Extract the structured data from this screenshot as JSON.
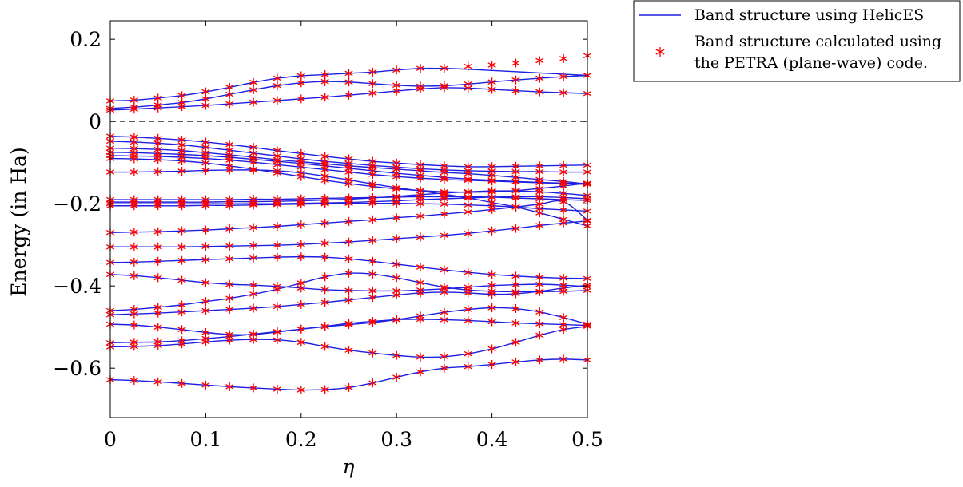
{
  "chart_data": {
    "type": "line",
    "xlabel": "η",
    "ylabel": "Energy (in Ha)",
    "xlim": [
      0,
      0.5
    ],
    "ylim": [
      -0.72,
      0.245
    ],
    "x_ticks": [
      "0",
      "0.1",
      "0.2",
      "0.3",
      "0.4",
      "0.5"
    ],
    "y_ticks": [
      "−0.6",
      "−0.4",
      "−0.2",
      "0",
      "0.2"
    ],
    "x_tick_values": [
      0,
      0.1,
      0.2,
      0.3,
      0.4,
      0.5
    ],
    "y_tick_values": [
      -0.6,
      -0.4,
      -0.2,
      0,
      0.2
    ],
    "zero_line": {
      "y": 0,
      "style": "dashed"
    },
    "grid": false,
    "legend_position": "outside-top-right",
    "series": [
      {
        "name": "Band structure using HelicES",
        "kind": "line",
        "color": "#1f1fe0"
      },
      {
        "name": "Band structure calculated using the PETRA (plane-wave) code.",
        "legend_lines": [
          "Band structure calculated using",
          "the PETRA (plane-wave) code."
        ],
        "kind": "marker",
        "marker": "asterisk",
        "color": "#ff0000"
      }
    ],
    "eta": [
      0,
      0.025,
      0.05,
      0.075,
      0.1,
      0.125,
      0.15,
      0.175,
      0.2,
      0.225,
      0.25,
      0.275,
      0.3,
      0.325,
      0.35,
      0.375,
      0.4,
      0.425,
      0.45,
      0.475,
      0.5
    ],
    "bands": [
      [
        0.05,
        0.052,
        0.057,
        0.063,
        0.072,
        0.083,
        0.095,
        0.105,
        0.111,
        0.114,
        0.117,
        0.12,
        0.125,
        0.129,
        0.129,
        0.127,
        0.124,
        0.121,
        0.118,
        0.115,
        0.112
      ],
      [
        0.032,
        0.035,
        0.04,
        0.046,
        0.055,
        0.066,
        0.077,
        0.087,
        0.094,
        0.097,
        0.096,
        0.092,
        0.088,
        0.086,
        0.087,
        0.091,
        0.096,
        0.101,
        0.105,
        0.109,
        0.112
      ],
      [
        0.028,
        0.03,
        0.033,
        0.036,
        0.039,
        0.043,
        0.047,
        0.051,
        0.055,
        0.059,
        0.064,
        0.069,
        0.074,
        0.079,
        0.082,
        0.081,
        0.078,
        0.075,
        0.072,
        0.07,
        0.068
      ],
      [
        -0.036,
        -0.038,
        -0.041,
        -0.045,
        -0.05,
        -0.056,
        -0.063,
        -0.071,
        -0.078,
        -0.085,
        -0.091,
        -0.097,
        -0.101,
        -0.105,
        -0.108,
        -0.11,
        -0.11,
        -0.109,
        -0.108,
        -0.107,
        -0.106
      ],
      [
        -0.048,
        -0.05,
        -0.053,
        -0.057,
        -0.063,
        -0.07,
        -0.077,
        -0.084,
        -0.091,
        -0.097,
        -0.102,
        -0.107,
        -0.111,
        -0.115,
        -0.118,
        -0.12,
        -0.121,
        -0.122,
        -0.122,
        -0.123,
        -0.123
      ],
      [
        -0.065,
        -0.066,
        -0.068,
        -0.071,
        -0.076,
        -0.081,
        -0.087,
        -0.093,
        -0.098,
        -0.103,
        -0.108,
        -0.112,
        -0.116,
        -0.12,
        -0.124,
        -0.127,
        -0.131,
        -0.136,
        -0.141,
        -0.146,
        -0.152
      ],
      [
        -0.075,
        -0.076,
        -0.078,
        -0.08,
        -0.083,
        -0.087,
        -0.092,
        -0.097,
        -0.102,
        -0.108,
        -0.114,
        -0.12,
        -0.126,
        -0.131,
        -0.136,
        -0.14,
        -0.143,
        -0.146,
        -0.148,
        -0.15,
        -0.151
      ],
      [
        -0.083,
        -0.084,
        -0.085,
        -0.087,
        -0.09,
        -0.094,
        -0.099,
        -0.105,
        -0.111,
        -0.117,
        -0.123,
        -0.129,
        -0.134,
        -0.138,
        -0.141,
        -0.143,
        -0.145,
        -0.147,
        -0.149,
        -0.151,
        -0.153
      ],
      [
        -0.09,
        -0.091,
        -0.093,
        -0.096,
        -0.101,
        -0.108,
        -0.116,
        -0.125,
        -0.134,
        -0.143,
        -0.151,
        -0.158,
        -0.164,
        -0.168,
        -0.171,
        -0.172,
        -0.171,
        -0.168,
        -0.163,
        -0.157,
        -0.15
      ],
      [
        -0.123,
        -0.123,
        -0.122,
        -0.121,
        -0.119,
        -0.118,
        -0.118,
        -0.12,
        -0.125,
        -0.133,
        -0.142,
        -0.152,
        -0.161,
        -0.169,
        -0.177,
        -0.186,
        -0.197,
        -0.208,
        -0.222,
        -0.238,
        -0.254
      ],
      [
        -0.19,
        -0.19,
        -0.19,
        -0.19,
        -0.19,
        -0.19,
        -0.189,
        -0.189,
        -0.188,
        -0.187,
        -0.186,
        -0.185,
        -0.184,
        -0.183,
        -0.183,
        -0.183,
        -0.184,
        -0.186,
        -0.188,
        -0.19,
        -0.192
      ],
      [
        -0.196,
        -0.196,
        -0.196,
        -0.196,
        -0.196,
        -0.195,
        -0.195,
        -0.194,
        -0.193,
        -0.191,
        -0.189,
        -0.186,
        -0.182,
        -0.178,
        -0.174,
        -0.171,
        -0.169,
        -0.169,
        -0.171,
        -0.175,
        -0.18
      ],
      [
        -0.2,
        -0.2,
        -0.2,
        -0.2,
        -0.2,
        -0.2,
        -0.2,
        -0.2,
        -0.199,
        -0.198,
        -0.197,
        -0.195,
        -0.193,
        -0.19,
        -0.188,
        -0.186,
        -0.184,
        -0.183,
        -0.183,
        -0.185,
        -0.188
      ],
      [
        -0.205,
        -0.205,
        -0.205,
        -0.205,
        -0.204,
        -0.204,
        -0.203,
        -0.202,
        -0.201,
        -0.2,
        -0.199,
        -0.199,
        -0.199,
        -0.2,
        -0.201,
        -0.203,
        -0.205,
        -0.208,
        -0.212,
        -0.215,
        -0.218
      ],
      [
        -0.27,
        -0.269,
        -0.268,
        -0.266,
        -0.264,
        -0.261,
        -0.258,
        -0.255,
        -0.251,
        -0.247,
        -0.243,
        -0.239,
        -0.234,
        -0.23,
        -0.225,
        -0.22,
        -0.214,
        -0.208,
        -0.201,
        -0.195,
        -0.24
      ],
      [
        -0.305,
        -0.305,
        -0.305,
        -0.305,
        -0.304,
        -0.303,
        -0.302,
        -0.301,
        -0.299,
        -0.296,
        -0.293,
        -0.289,
        -0.285,
        -0.281,
        -0.277,
        -0.272,
        -0.266,
        -0.26,
        -0.253,
        -0.247,
        -0.242
      ],
      [
        -0.343,
        -0.342,
        -0.34,
        -0.338,
        -0.336,
        -0.334,
        -0.332,
        -0.33,
        -0.329,
        -0.33,
        -0.334,
        -0.34,
        -0.347,
        -0.354,
        -0.361,
        -0.367,
        -0.372,
        -0.376,
        -0.379,
        -0.381,
        -0.382
      ],
      [
        -0.372,
        -0.375,
        -0.38,
        -0.386,
        -0.392,
        -0.396,
        -0.398,
        -0.401,
        -0.405,
        -0.409,
        -0.411,
        -0.412,
        -0.412,
        -0.41,
        -0.407,
        -0.403,
        -0.399,
        -0.397,
        -0.396,
        -0.398,
        -0.402
      ],
      [
        -0.46,
        -0.457,
        -0.452,
        -0.446,
        -0.438,
        -0.43,
        -0.42,
        -0.408,
        -0.393,
        -0.378,
        -0.369,
        -0.371,
        -0.38,
        -0.392,
        -0.403,
        -0.41,
        -0.413,
        -0.414,
        -0.414,
        -0.413,
        -0.411
      ],
      [
        -0.47,
        -0.468,
        -0.466,
        -0.463,
        -0.46,
        -0.457,
        -0.454,
        -0.45,
        -0.445,
        -0.44,
        -0.434,
        -0.428,
        -0.422,
        -0.417,
        -0.415,
        -0.417,
        -0.42,
        -0.419,
        -0.413,
        -0.405,
        -0.398
      ],
      [
        -0.493,
        -0.495,
        -0.5,
        -0.506,
        -0.513,
        -0.518,
        -0.518,
        -0.512,
        -0.505,
        -0.499,
        -0.494,
        -0.489,
        -0.482,
        -0.473,
        -0.464,
        -0.457,
        -0.453,
        -0.455,
        -0.463,
        -0.477,
        -0.493
      ],
      [
        -0.538,
        -0.537,
        -0.536,
        -0.533,
        -0.528,
        -0.523,
        -0.517,
        -0.511,
        -0.505,
        -0.498,
        -0.491,
        -0.486,
        -0.482,
        -0.481,
        -0.482,
        -0.484,
        -0.487,
        -0.49,
        -0.492,
        -0.494,
        -0.496
      ],
      [
        -0.548,
        -0.547,
        -0.545,
        -0.541,
        -0.536,
        -0.532,
        -0.53,
        -0.531,
        -0.537,
        -0.547,
        -0.556,
        -0.563,
        -0.569,
        -0.573,
        -0.572,
        -0.565,
        -0.553,
        -0.537,
        -0.52,
        -0.506,
        -0.498
      ],
      [
        -0.628,
        -0.63,
        -0.633,
        -0.637,
        -0.641,
        -0.645,
        -0.648,
        -0.651,
        -0.653,
        -0.652,
        -0.647,
        -0.636,
        -0.622,
        -0.609,
        -0.6,
        -0.596,
        -0.591,
        -0.585,
        -0.58,
        -0.578,
        -0.58
      ]
    ],
    "petra_eta": [
      0,
      0.025,
      0.05,
      0.075,
      0.1,
      0.125,
      0.15,
      0.175,
      0.2,
      0.225,
      0.25,
      0.275,
      0.3,
      0.325,
      0.35,
      0.375,
      0.4,
      0.425,
      0.45,
      0.475,
      0.5
    ],
    "petra_upper_band": [
      0.05,
      0.052,
      0.057,
      0.063,
      0.072,
      0.083,
      0.095,
      0.105,
      0.111,
      0.114,
      0.117,
      0.12,
      0.125,
      0.129,
      0.129,
      0.134,
      0.137,
      0.142,
      0.148,
      0.153,
      0.16
    ]
  }
}
